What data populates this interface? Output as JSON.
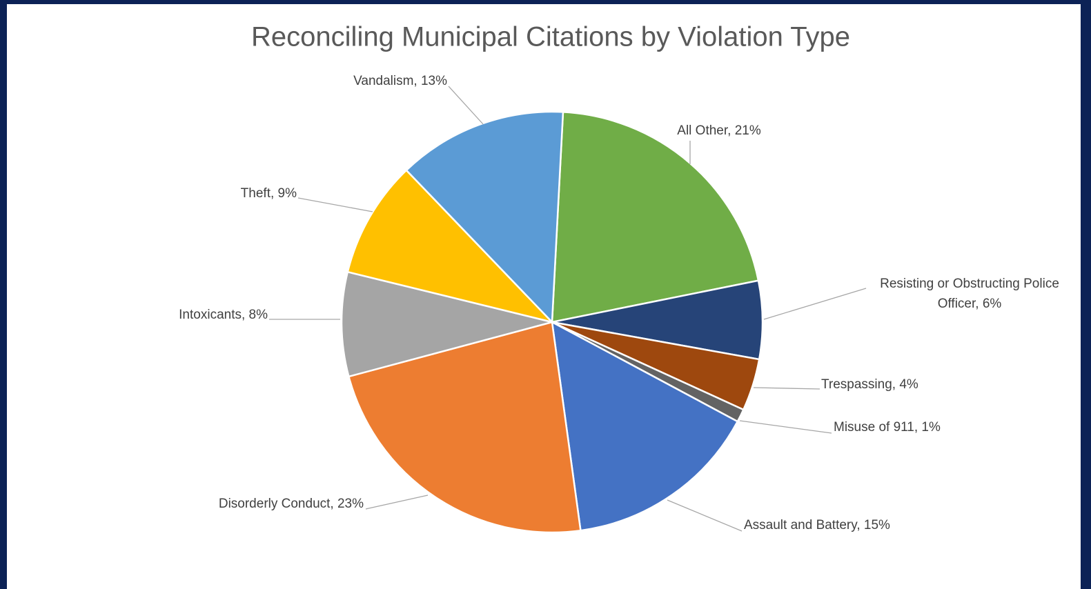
{
  "chart_data": {
    "type": "pie",
    "title": "Reconciling Municipal Citations by Violation Type",
    "values": [
      21,
      6,
      4,
      1,
      15,
      23,
      8,
      9,
      13
    ],
    "value_labels": [
      "All Other, 21%",
      "Resisting or Obstructing Police Officer, 6%",
      "Trespassing, 4%",
      "Misuse of 911, 1%",
      "Assault and Battery, 15%",
      "Disorderly Conduct, 23%",
      "Intoxicants, 8%",
      "Theft, 9%",
      "Vandalism, 13%"
    ],
    "colors": [
      "#70ad47",
      "#264478",
      "#9e480e",
      "#636363",
      "#4472c4",
      "#ed7d31",
      "#a5a5a5",
      "#ffc000",
      "#5b9bd5"
    ]
  }
}
